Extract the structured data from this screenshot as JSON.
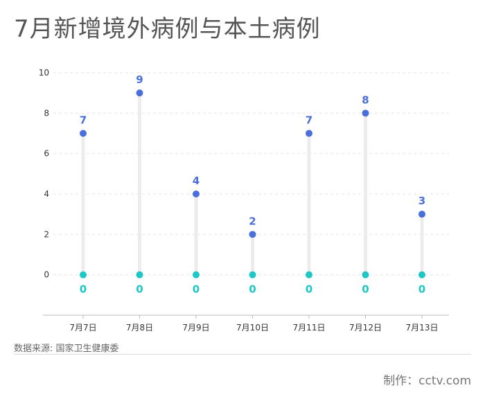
{
  "title": "7月新增境外病例与本土病例",
  "source": "数据来源: 国家卫生健康委",
  "credit": "制作：cctv.com",
  "colors": {
    "imported": "#4a6fdc",
    "local": "#1fc6c6",
    "stem": "#ececec",
    "grid": "#e6e6e6",
    "axis": "#bbbbbb"
  },
  "chart_data": {
    "type": "dumbbell",
    "title": "7月新增境外病例与本土病例",
    "categories": [
      "7月7日",
      "7月8日",
      "7月9日",
      "7月10日",
      "7月11日",
      "7月12日",
      "7月13日"
    ],
    "series": [
      {
        "values": [
          7,
          9,
          4,
          2,
          7,
          8,
          3
        ],
        "color": "#4a6fdc"
      },
      {
        "values": [
          0,
          0,
          0,
          0,
          0,
          0,
          0
        ],
        "color": "#1fc6c6"
      }
    ],
    "ylim": [
      -2,
      10
    ],
    "yticks": [
      0,
      2,
      4,
      6,
      8,
      10
    ],
    "grid": true,
    "legend": "none",
    "xlabel": "",
    "ylabel": ""
  }
}
